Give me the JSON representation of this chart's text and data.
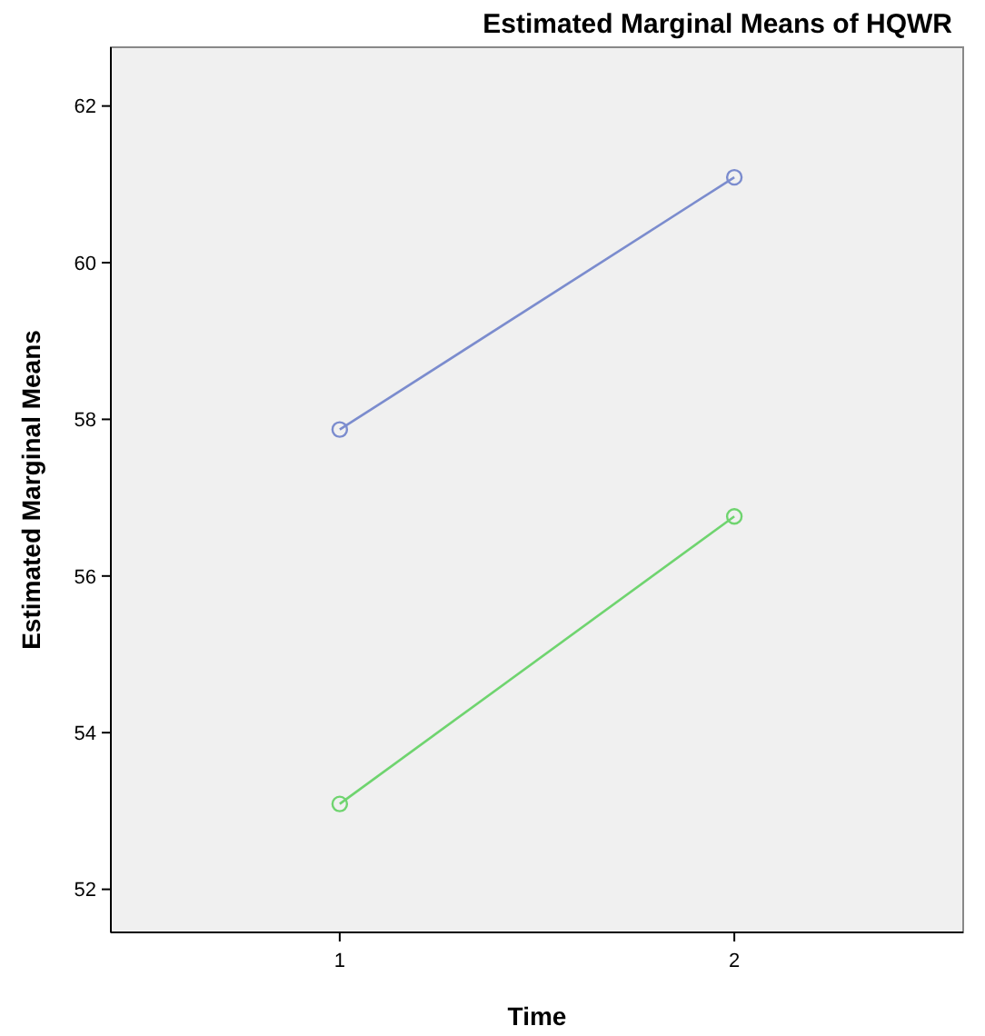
{
  "chart_data": {
    "type": "line",
    "title": "Estimated Marginal Means of HQWR",
    "xlabel": "Time",
    "ylabel": "Estimated Marginal Means",
    "categories": [
      "1",
      "2"
    ],
    "series": [
      {
        "color": "#7b8cce",
        "values": [
          57.87,
          61.09
        ]
      },
      {
        "color": "#6fd46f",
        "values": [
          53.09,
          56.76
        ]
      }
    ],
    "ylim": [
      51.45,
      62.75
    ],
    "yticks": [
      52,
      54,
      56,
      58,
      60,
      62
    ],
    "marker": "circle",
    "line_style": "solid",
    "grid": false
  }
}
